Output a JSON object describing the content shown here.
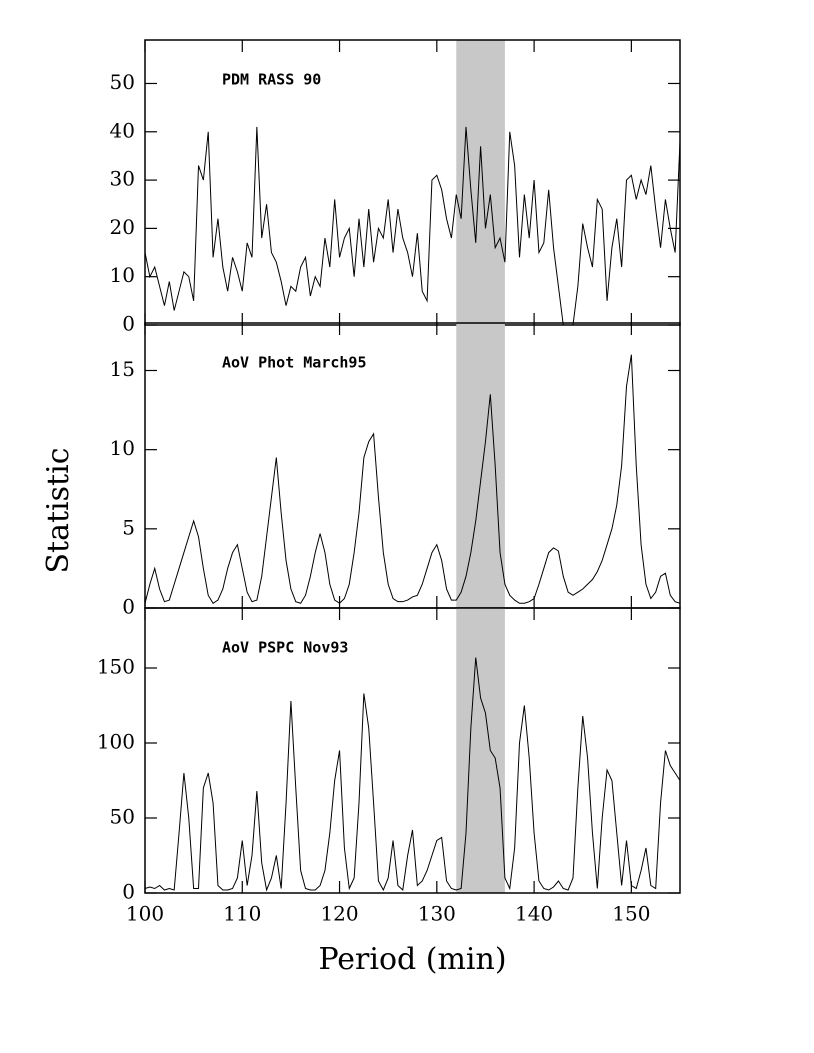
{
  "chart_data": [
    {
      "type": "line",
      "title": "PDM RASS 90",
      "color": "#000000",
      "highlight": [
        132,
        137
      ],
      "xlim": [
        100,
        155
      ],
      "xticks": [
        100,
        110,
        120,
        130,
        140,
        150
      ],
      "ylim": [
        0,
        59
      ],
      "yticks": [
        0,
        10,
        20,
        30,
        40,
        50
      ],
      "x": [
        100,
        100.5,
        101,
        101.5,
        102,
        102.5,
        103,
        103.5,
        104,
        104.5,
        105,
        105.5,
        106,
        106.5,
        107,
        107.5,
        108,
        108.5,
        109,
        109.5,
        110,
        110.5,
        111,
        111.5,
        112,
        112.5,
        113,
        113.5,
        114,
        114.5,
        115,
        115.5,
        116,
        116.5,
        117,
        117.5,
        118,
        118.5,
        119,
        119.5,
        120,
        120.5,
        121,
        121.5,
        122,
        122.5,
        123,
        123.5,
        124,
        124.5,
        125,
        125.5,
        126,
        126.5,
        127,
        127.5,
        128,
        128.5,
        129,
        129.5,
        130,
        130.5,
        131,
        131.5,
        132,
        132.5,
        133,
        133.5,
        134,
        134.5,
        135,
        135.5,
        136,
        136.5,
        137,
        137.5,
        138,
        138.5,
        139,
        139.5,
        140,
        140.5,
        141,
        141.5,
        142,
        142.5,
        143,
        143.5,
        144,
        144.5,
        145,
        145.5,
        146,
        146.5,
        147,
        147.5,
        148,
        148.5,
        149,
        149.5,
        150,
        150.5,
        151,
        151.5,
        152,
        152.5,
        153,
        153.5,
        154,
        154.5,
        155
      ],
      "values": [
        15,
        10,
        12,
        8,
        4,
        9,
        3,
        7,
        11,
        10,
        5,
        33,
        30,
        40,
        14,
        22,
        12,
        7,
        14,
        11,
        7,
        17,
        14,
        41,
        18,
        25,
        15,
        13,
        9,
        4,
        8,
        7,
        12,
        14,
        6,
        10,
        8,
        18,
        12,
        26,
        14,
        18,
        20,
        10,
        22,
        12,
        24,
        13,
        20,
        18,
        26,
        15,
        24,
        18,
        15,
        10,
        19,
        7,
        5,
        30,
        31,
        28,
        22,
        18,
        27,
        22,
        41,
        28,
        17,
        37,
        20,
        27,
        16,
        18,
        13,
        40,
        33,
        14,
        27,
        18,
        30,
        15,
        17,
        28,
        16,
        8,
        0,
        0,
        0,
        8,
        21,
        16,
        12,
        26,
        24,
        5,
        16,
        22,
        12,
        30,
        31,
        26,
        30,
        27,
        33,
        24,
        16,
        26,
        20,
        15,
        38
      ]
    },
    {
      "type": "line",
      "title": "AoV Phot March95",
      "ylabel": "Statistic",
      "color": "#000000",
      "highlight": [
        132,
        137
      ],
      "xlim": [
        100,
        155
      ],
      "xticks": [
        100,
        110,
        120,
        130,
        140,
        150
      ],
      "ylim": [
        0,
        18
      ],
      "yticks": [
        0,
        5,
        10,
        15
      ],
      "x": [
        100,
        100.5,
        101,
        101.5,
        102,
        102.5,
        103,
        103.5,
        104,
        104.5,
        105,
        105.5,
        106,
        106.5,
        107,
        107.5,
        108,
        108.5,
        109,
        109.5,
        110,
        110.5,
        111,
        111.5,
        112,
        112.5,
        113,
        113.5,
        114,
        114.5,
        115,
        115.5,
        116,
        116.5,
        117,
        117.5,
        118,
        118.5,
        119,
        119.5,
        120,
        120.5,
        121,
        121.5,
        122,
        122.5,
        123,
        123.5,
        124,
        124.5,
        125,
        125.5,
        126,
        126.5,
        127,
        127.5,
        128,
        128.5,
        129,
        129.5,
        130,
        130.5,
        131,
        131.5,
        132,
        132.5,
        133,
        133.5,
        134,
        134.5,
        135,
        135.5,
        136,
        136.5,
        137,
        137.5,
        138,
        138.5,
        139,
        139.5,
        140,
        140.5,
        141,
        141.5,
        142,
        142.5,
        143,
        143.5,
        144,
        144.5,
        145,
        145.5,
        146,
        146.5,
        147,
        147.5,
        148,
        148.5,
        149,
        149.5,
        150,
        150.5,
        151,
        151.5,
        152,
        152.5,
        153,
        153.5,
        154,
        154.5,
        155
      ],
      "values": [
        0.3,
        1.5,
        2.5,
        1.2,
        0.4,
        0.5,
        1.5,
        2.5,
        3.5,
        4.5,
        5.5,
        4.5,
        2.5,
        0.8,
        0.3,
        0.5,
        1.2,
        2.5,
        3.5,
        4.0,
        2.5,
        1.0,
        0.4,
        0.5,
        2.0,
        4.5,
        7.0,
        9.5,
        6.0,
        3.0,
        1.2,
        0.4,
        0.3,
        0.8,
        2.0,
        3.5,
        4.7,
        3.5,
        1.5,
        0.5,
        0.3,
        0.6,
        1.5,
        3.5,
        6.0,
        9.5,
        10.5,
        11.0,
        7.0,
        3.5,
        1.5,
        0.6,
        0.4,
        0.4,
        0.5,
        0.7,
        0.8,
        1.5,
        2.5,
        3.5,
        4.0,
        3.0,
        1.2,
        0.5,
        0.5,
        1.0,
        2.0,
        3.5,
        5.5,
        8.0,
        10.5,
        13.5,
        9.0,
        3.5,
        1.5,
        0.8,
        0.5,
        0.3,
        0.3,
        0.4,
        0.6,
        1.5,
        2.5,
        3.5,
        3.8,
        3.6,
        2.0,
        1.0,
        0.8,
        1.0,
        1.2,
        1.5,
        1.8,
        2.3,
        3.0,
        4.0,
        5.0,
        6.5,
        9.0,
        14.0,
        16.0,
        9.0,
        4.0,
        1.5,
        0.6,
        1.0,
        2.0,
        2.2,
        0.8,
        0.4,
        0.3
      ]
    },
    {
      "type": "line",
      "title": "AoV PSPC Nov93",
      "xlabel": "Period (min)",
      "color": "#000000",
      "highlight": [
        132,
        137
      ],
      "xlim": [
        100,
        155
      ],
      "xticks": [
        100,
        110,
        120,
        130,
        140,
        150
      ],
      "ylim": [
        0,
        190
      ],
      "yticks": [
        0,
        50,
        100,
        150
      ],
      "x": [
        100,
        100.5,
        101,
        101.5,
        102,
        102.5,
        103,
        103.5,
        104,
        104.5,
        105,
        105.5,
        106,
        106.5,
        107,
        107.5,
        108,
        108.5,
        109,
        109.5,
        110,
        110.5,
        111,
        111.5,
        112,
        112.5,
        113,
        113.5,
        114,
        114.5,
        115,
        115.5,
        116,
        116.5,
        117,
        117.5,
        118,
        118.5,
        119,
        119.5,
        120,
        120.5,
        121,
        121.5,
        122,
        122.5,
        123,
        123.5,
        124,
        124.5,
        125,
        125.5,
        126,
        126.5,
        127,
        127.5,
        128,
        128.5,
        129,
        129.5,
        130,
        130.5,
        131,
        131.5,
        132,
        132.5,
        133,
        133.5,
        134,
        134.5,
        135,
        135.5,
        136,
        136.5,
        137,
        137.5,
        138,
        138.5,
        139,
        139.5,
        140,
        140.5,
        141,
        141.5,
        142,
        142.5,
        143,
        143.5,
        144,
        144.5,
        145,
        145.5,
        146,
        146.5,
        147,
        147.5,
        148,
        148.5,
        149,
        149.5,
        150,
        150.5,
        151,
        151.5,
        152,
        152.5,
        153,
        153.5,
        154,
        154.5,
        155
      ],
      "values": [
        3,
        4,
        3,
        5,
        2,
        3,
        2,
        40,
        80,
        50,
        3,
        3,
        70,
        80,
        60,
        5,
        2,
        2,
        3,
        10,
        35,
        5,
        25,
        68,
        20,
        2,
        10,
        25,
        3,
        60,
        128,
        70,
        15,
        3,
        2,
        2,
        5,
        15,
        40,
        75,
        95,
        30,
        3,
        10,
        60,
        133,
        110,
        60,
        8,
        2,
        10,
        35,
        5,
        2,
        25,
        42,
        5,
        8,
        15,
        25,
        35,
        37,
        8,
        3,
        2,
        3,
        40,
        110,
        157,
        130,
        120,
        95,
        90,
        70,
        10,
        3,
        30,
        100,
        125,
        90,
        40,
        8,
        3,
        2,
        4,
        8,
        3,
        2,
        10,
        70,
        118,
        90,
        40,
        3,
        50,
        82,
        75,
        40,
        5,
        35,
        5,
        3,
        15,
        30,
        5,
        3,
        60,
        95,
        85,
        80,
        75
      ]
    }
  ]
}
